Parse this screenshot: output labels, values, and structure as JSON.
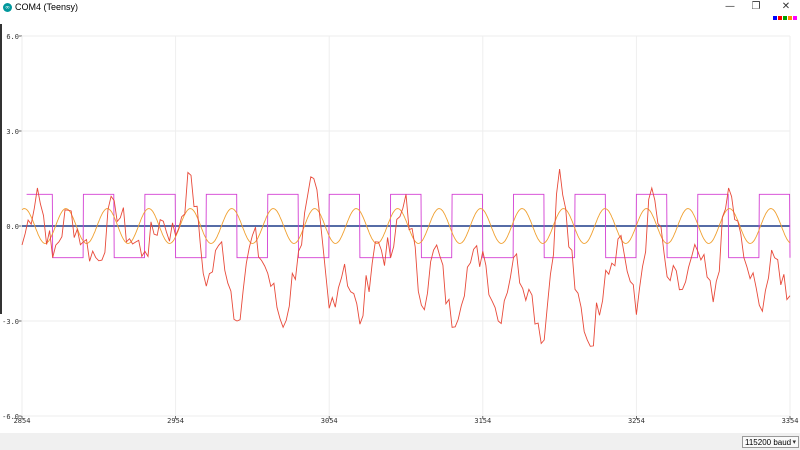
{
  "window": {
    "title": "COM4 (Teensy)",
    "app_icon_glyph": "∞",
    "controls": {
      "minimize": "—",
      "restore": "❐",
      "close": "✕"
    }
  },
  "legend_colors": [
    "#0000ff",
    "#ff0000",
    "#00a000",
    "#ff8c00",
    "#ff00ff"
  ],
  "footer": {
    "baud": "115200 baud",
    "baud_chevron": "▾"
  },
  "chart_data": {
    "type": "line",
    "ylim": [
      -6.0,
      6.0
    ],
    "y_ticks": [
      "6.0",
      "3.0",
      "0.0",
      "-3.0",
      "-6.0"
    ],
    "y_tick_values": [
      6.0,
      3.0,
      0.0,
      -3.0,
      -6.0
    ],
    "x_ticks": [
      "2854",
      "2954",
      "3054",
      "3154",
      "3254",
      "3354"
    ],
    "x_range": [
      2854,
      3354
    ],
    "grid": true,
    "series": [
      {
        "color": "#1f3c88",
        "style": "constant",
        "value": 0.0
      },
      {
        "color": "#d33fd3",
        "style": "square",
        "period": 40,
        "amplitude": 1.0
      },
      {
        "color": "#f0a030",
        "style": "sine",
        "period": 27,
        "amplitude": 0.55
      },
      {
        "color": "#e84a3a",
        "style": "noisy",
        "x": [
          2854,
          2864,
          2874,
          2884,
          2894,
          2904,
          2914,
          2924,
          2934,
          2944,
          2954,
          2964,
          2974,
          2984,
          2994,
          3004,
          3014,
          3024,
          3034,
          3044,
          3054,
          3064,
          3074,
          3084,
          3094,
          3104,
          3114,
          3124,
          3134,
          3144,
          3154,
          3164,
          3174,
          3184,
          3194,
          3204,
          3214,
          3224,
          3234,
          3244,
          3254,
          3264,
          3274,
          3284,
          3294,
          3304,
          3314,
          3324,
          3334,
          3344,
          3354
        ],
        "values": [
          -0.6,
          1.2,
          -1.0,
          0.5,
          -0.5,
          -1.1,
          0.8,
          -0.4,
          -0.8,
          0.2,
          -0.3,
          1.6,
          -1.9,
          -0.5,
          -3.0,
          -0.3,
          -1.5,
          -3.2,
          -0.8,
          1.5,
          -2.6,
          -1.2,
          -3.1,
          -0.5,
          -1.0,
          1.0,
          -2.5,
          -0.6,
          -3.2,
          -1.3,
          -0.8,
          -3.0,
          -1.0,
          -2.0,
          -3.6,
          1.8,
          -2.0,
          -3.8,
          -1.4,
          -0.3,
          -2.8,
          1.2,
          -1.6,
          -2.0,
          -0.8,
          -2.4,
          1.2,
          -1.0,
          -2.5,
          -1.0,
          -2.2
        ]
      }
    ]
  }
}
